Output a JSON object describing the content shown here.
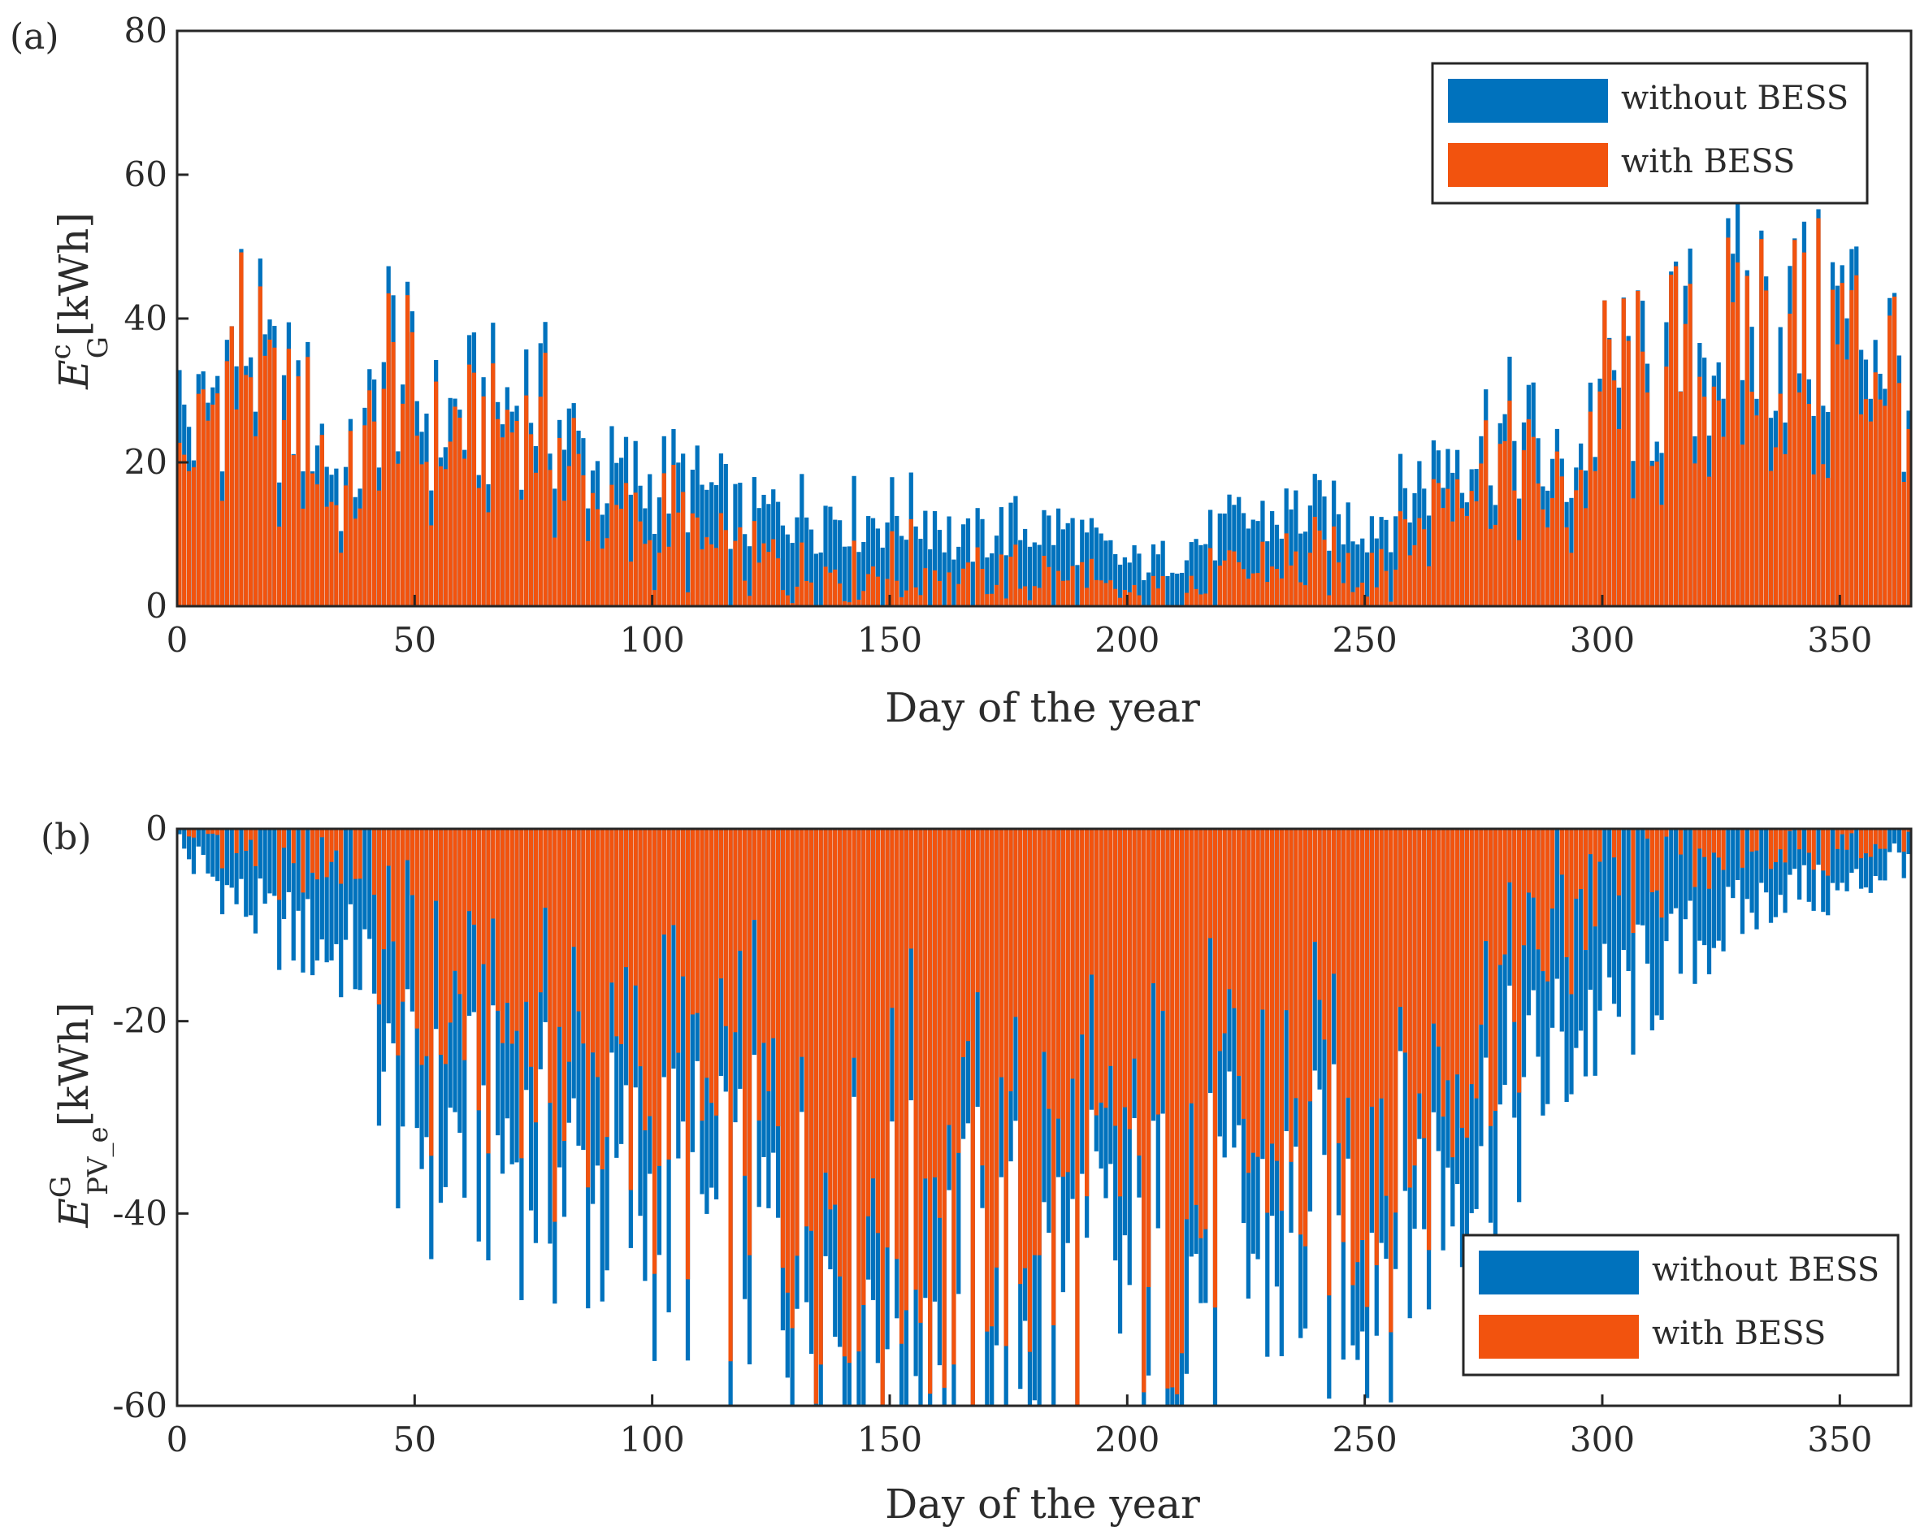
{
  "colors": {
    "without": "#0072BD",
    "with": "#F2530E",
    "axis": "#262626"
  },
  "chart_data": [
    {
      "panel_label": "(a)",
      "type": "bar",
      "xlabel": "Day of the year",
      "ylabel_main": "E",
      "ylabel_sup": "c",
      "ylabel_sub": "G",
      "ylabel_unit": "[kWh]",
      "xlim": [
        0,
        365
      ],
      "ylim": [
        0,
        80
      ],
      "xticks": [
        0,
        50,
        100,
        150,
        200,
        250,
        300,
        350
      ],
      "yticks": [
        0,
        20,
        40,
        60,
        80
      ],
      "legend": [
        "without BESS",
        "with BESS"
      ],
      "legend_position": "top-right",
      "series": [
        {
          "name": "without BESS",
          "anchors": [
            [
              1,
              27
            ],
            [
              5,
              25
            ],
            [
              10,
              33
            ],
            [
              15,
              39
            ],
            [
              20,
              30
            ],
            [
              25,
              28
            ],
            [
              30,
              26
            ],
            [
              35,
              16
            ],
            [
              40,
              22
            ],
            [
              45,
              37
            ],
            [
              50,
              30
            ],
            [
              55,
              25
            ],
            [
              60,
              27
            ],
            [
              65,
              27
            ],
            [
              70,
              28
            ],
            [
              75,
              30
            ],
            [
              80,
              26
            ],
            [
              85,
              22
            ],
            [
              90,
              18
            ],
            [
              95,
              18
            ],
            [
              100,
              17
            ],
            [
              105,
              18
            ],
            [
              110,
              16
            ],
            [
              115,
              15
            ],
            [
              120,
              12
            ],
            [
              125,
              13
            ],
            [
              130,
              14
            ],
            [
              135,
              13
            ],
            [
              140,
              14
            ],
            [
              145,
              12
            ],
            [
              150,
              13
            ],
            [
              155,
              13
            ],
            [
              160,
              13
            ],
            [
              165,
              8
            ],
            [
              170,
              10
            ],
            [
              175,
              11
            ],
            [
              180,
              11
            ],
            [
              185,
              11
            ],
            [
              190,
              10
            ],
            [
              195,
              8
            ],
            [
              200,
              6
            ],
            [
              205,
              6
            ],
            [
              210,
              7
            ],
            [
              215,
              9
            ],
            [
              220,
              10
            ],
            [
              225,
              12
            ],
            [
              230,
              12
            ],
            [
              235,
              13
            ],
            [
              240,
              13
            ],
            [
              245,
              12
            ],
            [
              250,
              12
            ],
            [
              255,
              13
            ],
            [
              260,
              16
            ],
            [
              265,
              19
            ],
            [
              270,
              23
            ],
            [
              275,
              24
            ],
            [
              280,
              24
            ],
            [
              285,
              24
            ],
            [
              290,
              18
            ],
            [
              295,
              20
            ],
            [
              300,
              30
            ],
            [
              305,
              33
            ],
            [
              310,
              30
            ],
            [
              315,
              34
            ],
            [
              320,
              36
            ],
            [
              325,
              38
            ],
            [
              330,
              40
            ],
            [
              335,
              41
            ],
            [
              340,
              40
            ],
            [
              345,
              38
            ],
            [
              350,
              41
            ],
            [
              355,
              40
            ],
            [
              360,
              38
            ],
            [
              365,
              30
            ]
          ]
        },
        {
          "name": "with BESS",
          "anchors": [
            [
              1,
              20
            ],
            [
              5,
              22
            ],
            [
              10,
              30
            ],
            [
              15,
              36
            ],
            [
              20,
              27
            ],
            [
              25,
              25
            ],
            [
              30,
              24
            ],
            [
              35,
              12
            ],
            [
              40,
              20
            ],
            [
              45,
              33
            ],
            [
              50,
              26
            ],
            [
              55,
              21
            ],
            [
              60,
              23
            ],
            [
              65,
              23
            ],
            [
              70,
              24
            ],
            [
              75,
              25
            ],
            [
              80,
              21
            ],
            [
              85,
              17
            ],
            [
              90,
              12
            ],
            [
              95,
              11
            ],
            [
              100,
              10
            ],
            [
              105,
              11
            ],
            [
              110,
              8
            ],
            [
              115,
              7
            ],
            [
              120,
              5
            ],
            [
              125,
              6
            ],
            [
              130,
              6
            ],
            [
              135,
              5
            ],
            [
              140,
              6
            ],
            [
              145,
              5
            ],
            [
              150,
              5
            ],
            [
              155,
              5
            ],
            [
              160,
              4
            ],
            [
              165,
              2
            ],
            [
              170,
              4
            ],
            [
              175,
              4
            ],
            [
              180,
              4
            ],
            [
              185,
              3
            ],
            [
              190,
              3
            ],
            [
              195,
              2
            ],
            [
              200,
              1
            ],
            [
              205,
              1
            ],
            [
              210,
              2
            ],
            [
              215,
              3
            ],
            [
              220,
              3
            ],
            [
              225,
              4
            ],
            [
              230,
              5
            ],
            [
              235,
              6
            ],
            [
              240,
              6
            ],
            [
              245,
              6
            ],
            [
              250,
              6
            ],
            [
              255,
              7
            ],
            [
              260,
              10
            ],
            [
              265,
              14
            ],
            [
              270,
              18
            ],
            [
              275,
              19
            ],
            [
              280,
              19
            ],
            [
              285,
              19
            ],
            [
              290,
              13
            ],
            [
              295,
              15
            ],
            [
              300,
              26
            ],
            [
              305,
              29
            ],
            [
              310,
              26
            ],
            [
              315,
              30
            ],
            [
              320,
              32
            ],
            [
              325,
              34
            ],
            [
              330,
              36
            ],
            [
              335,
              37
            ],
            [
              340,
              36
            ],
            [
              345,
              34
            ],
            [
              350,
              37
            ],
            [
              355,
              36
            ],
            [
              360,
              34
            ],
            [
              365,
              26
            ]
          ]
        }
      ]
    },
    {
      "panel_label": "(b)",
      "type": "bar",
      "xlabel": "Day of the year",
      "ylabel_main": "E",
      "ylabel_sup": "G",
      "ylabel_sub": "PV_e",
      "ylabel_unit": "[kWh]",
      "xlim": [
        0,
        365
      ],
      "ylim": [
        -60,
        0
      ],
      "xticks": [
        0,
        50,
        100,
        150,
        200,
        250,
        300,
        350
      ],
      "yticks": [
        0,
        -20,
        -40,
        -60
      ],
      "legend": [
        "without BESS",
        "with BESS"
      ],
      "legend_position": "bottom-right",
      "series": [
        {
          "name": "without BESS",
          "anchors": [
            [
              1,
              -2
            ],
            [
              10,
              -6
            ],
            [
              20,
              -10
            ],
            [
              30,
              -12
            ],
            [
              40,
              -14
            ],
            [
              45,
              -28
            ],
            [
              50,
              -30
            ],
            [
              55,
              -33
            ],
            [
              60,
              -32
            ],
            [
              70,
              -33
            ],
            [
              80,
              -36
            ],
            [
              90,
              -38
            ],
            [
              100,
              -39
            ],
            [
              110,
              -40
            ],
            [
              115,
              -44
            ],
            [
              120,
              -42
            ],
            [
              130,
              -45
            ],
            [
              140,
              -47
            ],
            [
              150,
              -49
            ],
            [
              160,
              -50
            ],
            [
              170,
              -50
            ],
            [
              180,
              -50
            ],
            [
              190,
              -48
            ],
            [
              200,
              -48
            ],
            [
              210,
              -47
            ],
            [
              220,
              -45
            ],
            [
              230,
              -44
            ],
            [
              240,
              -43
            ],
            [
              250,
              -43
            ],
            [
              260,
              -40
            ],
            [
              270,
              -35
            ],
            [
              280,
              -30
            ],
            [
              290,
              -24
            ],
            [
              300,
              -20
            ],
            [
              310,
              -16
            ],
            [
              320,
              -12
            ],
            [
              330,
              -9
            ],
            [
              340,
              -6
            ],
            [
              350,
              -7
            ],
            [
              360,
              -4
            ],
            [
              365,
              -2
            ]
          ]
        },
        {
          "name": "with BESS",
          "anchors": [
            [
              1,
              0
            ],
            [
              10,
              -1
            ],
            [
              20,
              -2
            ],
            [
              30,
              -2
            ],
            [
              40,
              -2
            ],
            [
              45,
              -15
            ],
            [
              50,
              -19
            ],
            [
              55,
              -21
            ],
            [
              60,
              -21
            ],
            [
              70,
              -22
            ],
            [
              80,
              -25
            ],
            [
              90,
              -27
            ],
            [
              100,
              -28
            ],
            [
              110,
              -30
            ],
            [
              115,
              -33
            ],
            [
              120,
              -31
            ],
            [
              130,
              -34
            ],
            [
              140,
              -37
            ],
            [
              150,
              -39
            ],
            [
              160,
              -40
            ],
            [
              170,
              -41
            ],
            [
              180,
              -40
            ],
            [
              190,
              -38
            ],
            [
              200,
              -38
            ],
            [
              210,
              -37
            ],
            [
              220,
              -35
            ],
            [
              230,
              -34
            ],
            [
              240,
              -33
            ],
            [
              250,
              -33
            ],
            [
              260,
              -30
            ],
            [
              270,
              -25
            ],
            [
              280,
              -18
            ],
            [
              290,
              -11
            ],
            [
              300,
              -6
            ],
            [
              310,
              -3
            ],
            [
              320,
              -2
            ],
            [
              330,
              -1
            ],
            [
              340,
              -1
            ],
            [
              350,
              -2
            ],
            [
              360,
              -1
            ],
            [
              365,
              0
            ]
          ]
        }
      ]
    }
  ]
}
